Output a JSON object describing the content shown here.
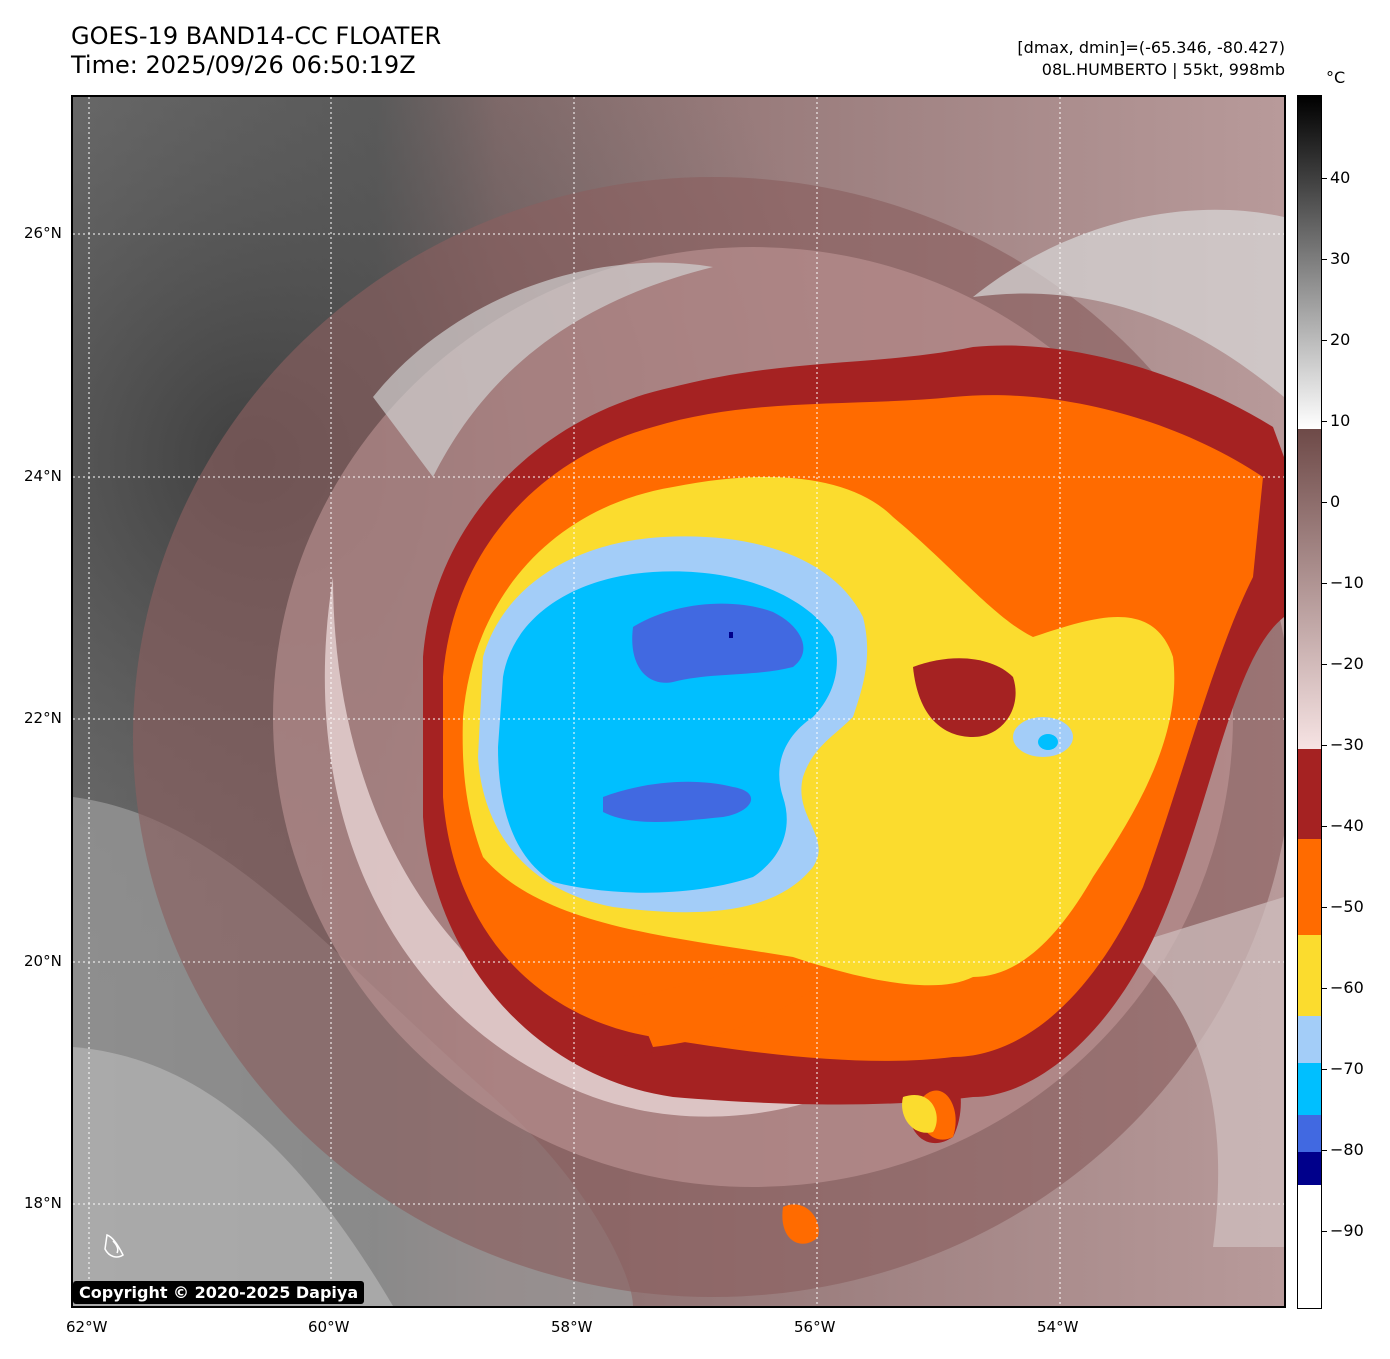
{
  "header": {
    "title_line1": "GOES-19 BAND14-CC FLOATER",
    "title_line2": "Time: 2025/09/26 06:50:19Z",
    "info_line1": "[dmax, dmin]=(-65.346, -80.427)",
    "info_line2": "08L.HUMBERTO | 55kt, 998mb"
  },
  "map": {
    "lat_labels": [
      "26°N",
      "24°N",
      "22°N",
      "20°N",
      "18°N"
    ],
    "lon_labels": [
      "62°W",
      "60°W",
      "58°W",
      "56°W",
      "54°W"
    ],
    "storm_name": "HUMBERTO",
    "intensity_kt": 55,
    "pressure_mb": 998
  },
  "colorbar": {
    "unit": "°C",
    "tick_labels": [
      "40",
      "30",
      "20",
      "10",
      "0",
      "−10",
      "−20",
      "−30",
      "−40",
      "−50",
      "−60",
      "−70",
      "−80",
      "−90"
    ],
    "scale_colors": {
      "black": "#000000",
      "white": "#ffffff",
      "warm_brown": "#6e4a48",
      "pink": "#f3dcdc",
      "dark_red": "#a52222",
      "orange": "#ff6b00",
      "yellow": "#fbdc2e",
      "light_blue": "#a3cdf8",
      "cyan": "#00bfff",
      "royal_blue": "#4169e1",
      "navy": "#00008b"
    }
  },
  "copyright": "Copyright © 2020-2025 Dapiya"
}
